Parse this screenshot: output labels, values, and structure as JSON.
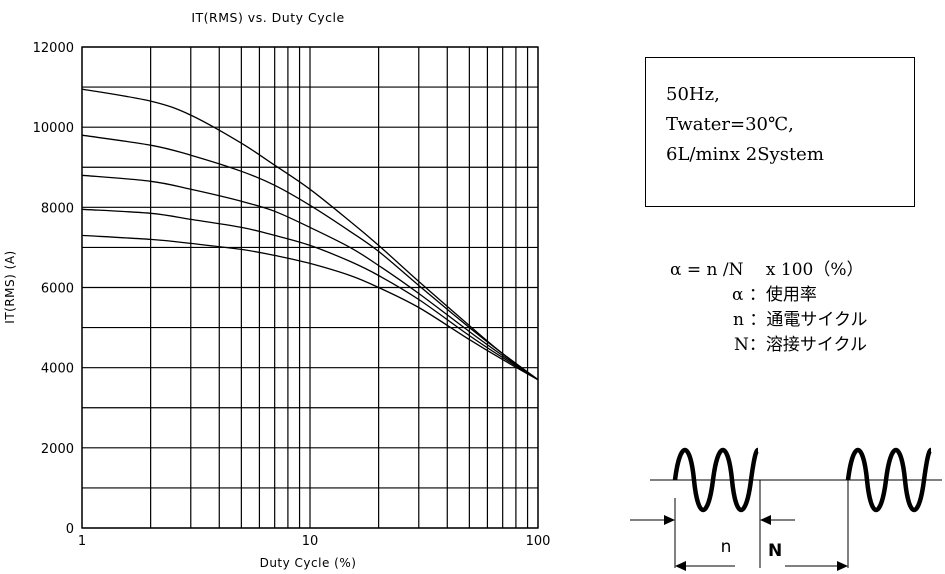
{
  "chart_data": {
    "type": "line",
    "title": "IT(RMS)  vs.  Duty Cycle",
    "xlabel": "Duty Cycle  (%)",
    "ylabel": "IT(RMS) (A)",
    "xscale": "log",
    "xlim": [
      1,
      100
    ],
    "ylim": [
      0,
      12000
    ],
    "x_ticks": [
      "1",
      "10",
      "100"
    ],
    "y_ticks": [
      "0",
      "2000",
      "4000",
      "6000",
      "8000",
      "10000",
      "12000"
    ],
    "grid": true,
    "series": [
      {
        "x": [
          1,
          2,
          3,
          5,
          7,
          10,
          15,
          20,
          30,
          50,
          70,
          100
        ],
        "values": [
          10950,
          10650,
          10300,
          9600,
          9050,
          8450,
          7650,
          7050,
          6150,
          5050,
          4350,
          3700
        ]
      },
      {
        "x": [
          1,
          2,
          3,
          5,
          7,
          10,
          15,
          20,
          30,
          50,
          70,
          100
        ],
        "values": [
          9800,
          9550,
          9300,
          8900,
          8550,
          8050,
          7400,
          6900,
          6050,
          5000,
          4350,
          3700
        ]
      },
      {
        "x": [
          1,
          2,
          3,
          5,
          7,
          10,
          15,
          20,
          30,
          50,
          70,
          100
        ],
        "values": [
          8800,
          8650,
          8450,
          8150,
          7900,
          7500,
          7000,
          6550,
          5850,
          4900,
          4300,
          3700
        ]
      },
      {
        "x": [
          1,
          2,
          3,
          5,
          7,
          10,
          15,
          20,
          30,
          50,
          70,
          100
        ],
        "values": [
          7950,
          7850,
          7700,
          7500,
          7300,
          7050,
          6650,
          6300,
          5700,
          4800,
          4250,
          3700
        ]
      },
      {
        "x": [
          1,
          2,
          3,
          5,
          7,
          10,
          15,
          20,
          30,
          50,
          70,
          100
        ],
        "values": [
          7300,
          7200,
          7100,
          6950,
          6800,
          6600,
          6300,
          6000,
          5500,
          4700,
          4200,
          3700
        ]
      }
    ]
  },
  "conditions": {
    "line1": "50Hz,",
    "line2": "Twater=30℃,",
    "line3": "6L/minx 2System"
  },
  "formula": {
    "main": "α = n /N　 x 100（%）",
    "alpha_def": "α ：使用率",
    "n_def": "n ：通電サイクル",
    "N_def": "N：溶接サイクル"
  },
  "waveform": {
    "n_label": "n",
    "N_label": "N"
  }
}
